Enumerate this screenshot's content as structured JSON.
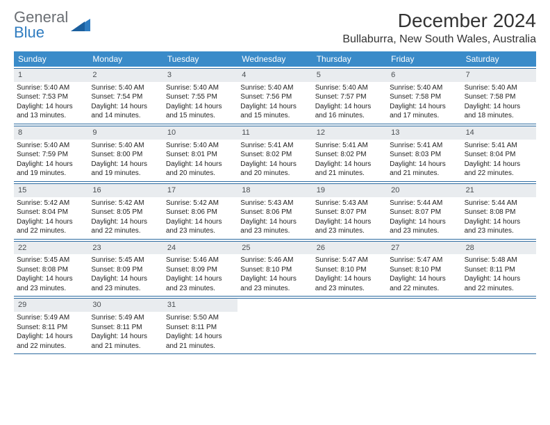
{
  "logo": {
    "part1": "General",
    "part2": "Blue"
  },
  "title": "December 2024",
  "location": "Bullaburra, New South Wales, Australia",
  "colors": {
    "header_bg": "#3a8bc9",
    "daynum_bg": "#e9ecef",
    "rule": "#2c6aa0",
    "logo_gray": "#6a6e73",
    "logo_blue": "#2f7cc0"
  },
  "day_names": [
    "Sunday",
    "Monday",
    "Tuesday",
    "Wednesday",
    "Thursday",
    "Friday",
    "Saturday"
  ],
  "weeks": [
    [
      {
        "n": "1",
        "sr": "Sunrise: 5:40 AM",
        "ss": "Sunset: 7:53 PM",
        "d1": "Daylight: 14 hours",
        "d2": "and 13 minutes."
      },
      {
        "n": "2",
        "sr": "Sunrise: 5:40 AM",
        "ss": "Sunset: 7:54 PM",
        "d1": "Daylight: 14 hours",
        "d2": "and 14 minutes."
      },
      {
        "n": "3",
        "sr": "Sunrise: 5:40 AM",
        "ss": "Sunset: 7:55 PM",
        "d1": "Daylight: 14 hours",
        "d2": "and 15 minutes."
      },
      {
        "n": "4",
        "sr": "Sunrise: 5:40 AM",
        "ss": "Sunset: 7:56 PM",
        "d1": "Daylight: 14 hours",
        "d2": "and 15 minutes."
      },
      {
        "n": "5",
        "sr": "Sunrise: 5:40 AM",
        "ss": "Sunset: 7:57 PM",
        "d1": "Daylight: 14 hours",
        "d2": "and 16 minutes."
      },
      {
        "n": "6",
        "sr": "Sunrise: 5:40 AM",
        "ss": "Sunset: 7:58 PM",
        "d1": "Daylight: 14 hours",
        "d2": "and 17 minutes."
      },
      {
        "n": "7",
        "sr": "Sunrise: 5:40 AM",
        "ss": "Sunset: 7:58 PM",
        "d1": "Daylight: 14 hours",
        "d2": "and 18 minutes."
      }
    ],
    [
      {
        "n": "8",
        "sr": "Sunrise: 5:40 AM",
        "ss": "Sunset: 7:59 PM",
        "d1": "Daylight: 14 hours",
        "d2": "and 19 minutes."
      },
      {
        "n": "9",
        "sr": "Sunrise: 5:40 AM",
        "ss": "Sunset: 8:00 PM",
        "d1": "Daylight: 14 hours",
        "d2": "and 19 minutes."
      },
      {
        "n": "10",
        "sr": "Sunrise: 5:40 AM",
        "ss": "Sunset: 8:01 PM",
        "d1": "Daylight: 14 hours",
        "d2": "and 20 minutes."
      },
      {
        "n": "11",
        "sr": "Sunrise: 5:41 AM",
        "ss": "Sunset: 8:02 PM",
        "d1": "Daylight: 14 hours",
        "d2": "and 20 minutes."
      },
      {
        "n": "12",
        "sr": "Sunrise: 5:41 AM",
        "ss": "Sunset: 8:02 PM",
        "d1": "Daylight: 14 hours",
        "d2": "and 21 minutes."
      },
      {
        "n": "13",
        "sr": "Sunrise: 5:41 AM",
        "ss": "Sunset: 8:03 PM",
        "d1": "Daylight: 14 hours",
        "d2": "and 21 minutes."
      },
      {
        "n": "14",
        "sr": "Sunrise: 5:41 AM",
        "ss": "Sunset: 8:04 PM",
        "d1": "Daylight: 14 hours",
        "d2": "and 22 minutes."
      }
    ],
    [
      {
        "n": "15",
        "sr": "Sunrise: 5:42 AM",
        "ss": "Sunset: 8:04 PM",
        "d1": "Daylight: 14 hours",
        "d2": "and 22 minutes."
      },
      {
        "n": "16",
        "sr": "Sunrise: 5:42 AM",
        "ss": "Sunset: 8:05 PM",
        "d1": "Daylight: 14 hours",
        "d2": "and 22 minutes."
      },
      {
        "n": "17",
        "sr": "Sunrise: 5:42 AM",
        "ss": "Sunset: 8:06 PM",
        "d1": "Daylight: 14 hours",
        "d2": "and 23 minutes."
      },
      {
        "n": "18",
        "sr": "Sunrise: 5:43 AM",
        "ss": "Sunset: 8:06 PM",
        "d1": "Daylight: 14 hours",
        "d2": "and 23 minutes."
      },
      {
        "n": "19",
        "sr": "Sunrise: 5:43 AM",
        "ss": "Sunset: 8:07 PM",
        "d1": "Daylight: 14 hours",
        "d2": "and 23 minutes."
      },
      {
        "n": "20",
        "sr": "Sunrise: 5:44 AM",
        "ss": "Sunset: 8:07 PM",
        "d1": "Daylight: 14 hours",
        "d2": "and 23 minutes."
      },
      {
        "n": "21",
        "sr": "Sunrise: 5:44 AM",
        "ss": "Sunset: 8:08 PM",
        "d1": "Daylight: 14 hours",
        "d2": "and 23 minutes."
      }
    ],
    [
      {
        "n": "22",
        "sr": "Sunrise: 5:45 AM",
        "ss": "Sunset: 8:08 PM",
        "d1": "Daylight: 14 hours",
        "d2": "and 23 minutes."
      },
      {
        "n": "23",
        "sr": "Sunrise: 5:45 AM",
        "ss": "Sunset: 8:09 PM",
        "d1": "Daylight: 14 hours",
        "d2": "and 23 minutes."
      },
      {
        "n": "24",
        "sr": "Sunrise: 5:46 AM",
        "ss": "Sunset: 8:09 PM",
        "d1": "Daylight: 14 hours",
        "d2": "and 23 minutes."
      },
      {
        "n": "25",
        "sr": "Sunrise: 5:46 AM",
        "ss": "Sunset: 8:10 PM",
        "d1": "Daylight: 14 hours",
        "d2": "and 23 minutes."
      },
      {
        "n": "26",
        "sr": "Sunrise: 5:47 AM",
        "ss": "Sunset: 8:10 PM",
        "d1": "Daylight: 14 hours",
        "d2": "and 23 minutes."
      },
      {
        "n": "27",
        "sr": "Sunrise: 5:47 AM",
        "ss": "Sunset: 8:10 PM",
        "d1": "Daylight: 14 hours",
        "d2": "and 22 minutes."
      },
      {
        "n": "28",
        "sr": "Sunrise: 5:48 AM",
        "ss": "Sunset: 8:11 PM",
        "d1": "Daylight: 14 hours",
        "d2": "and 22 minutes."
      }
    ],
    [
      {
        "n": "29",
        "sr": "Sunrise: 5:49 AM",
        "ss": "Sunset: 8:11 PM",
        "d1": "Daylight: 14 hours",
        "d2": "and 22 minutes."
      },
      {
        "n": "30",
        "sr": "Sunrise: 5:49 AM",
        "ss": "Sunset: 8:11 PM",
        "d1": "Daylight: 14 hours",
        "d2": "and 21 minutes."
      },
      {
        "n": "31",
        "sr": "Sunrise: 5:50 AM",
        "ss": "Sunset: 8:11 PM",
        "d1": "Daylight: 14 hours",
        "d2": "and 21 minutes."
      },
      null,
      null,
      null,
      null
    ]
  ]
}
